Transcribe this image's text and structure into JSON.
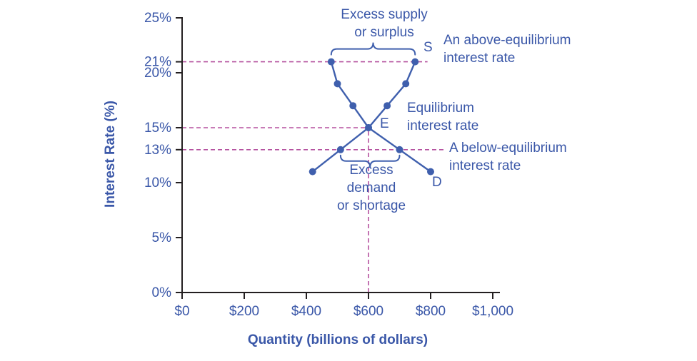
{
  "chart_data": {
    "type": "line",
    "title": "",
    "xlabel": "Quantity (billions of dollars)",
    "ylabel": "Interest Rate (%)",
    "xlim": [
      0,
      1000
    ],
    "ylim": [
      0,
      25
    ],
    "grid": false,
    "legend": "none",
    "x_ticks": [
      {
        "value": 0,
        "label": "$0"
      },
      {
        "value": 200,
        "label": "$200"
      },
      {
        "value": 400,
        "label": "$400"
      },
      {
        "value": 600,
        "label": "$600"
      },
      {
        "value": 800,
        "label": "$800"
      },
      {
        "value": 1000,
        "label": "$1,000"
      }
    ],
    "y_ticks": [
      {
        "value": 0,
        "label": "0%"
      },
      {
        "value": 5,
        "label": "5%"
      },
      {
        "value": 10,
        "label": "10%"
      },
      {
        "value": 13,
        "label": "13%"
      },
      {
        "value": 15,
        "label": "15%"
      },
      {
        "value": 20,
        "label": "20%"
      },
      {
        "value": 21,
        "label": "21%"
      },
      {
        "value": 25,
        "label": "25%"
      }
    ],
    "series": [
      {
        "name": "Supply",
        "end_label": "S",
        "points": [
          [
            420,
            11
          ],
          [
            510,
            13
          ],
          [
            600,
            15
          ],
          [
            660,
            17
          ],
          [
            720,
            19
          ],
          [
            750,
            21
          ]
        ]
      },
      {
        "name": "Demand",
        "end_label": "D",
        "points": [
          [
            480,
            21
          ],
          [
            500,
            19
          ],
          [
            550,
            17
          ],
          [
            600,
            15
          ],
          [
            700,
            13
          ],
          [
            800,
            11
          ]
        ]
      }
    ],
    "equilibrium": {
      "x": 600,
      "y": 15,
      "label": "E"
    },
    "dashed_guides": [
      {
        "orient": "h",
        "at": 21,
        "from": 0,
        "to": 790
      },
      {
        "orient": "h",
        "at": 15,
        "from": 0,
        "to": 600
      },
      {
        "orient": "h",
        "at": 13,
        "from": 0,
        "to": 845
      },
      {
        "orient": "v",
        "at": 600,
        "from": 0,
        "to": 15
      }
    ],
    "braces": [
      {
        "x1": 480,
        "x2": 750,
        "at": 21,
        "direction": "up"
      },
      {
        "x1": 510,
        "x2": 700,
        "at": 13,
        "direction": "down"
      }
    ],
    "annotations": {
      "excess_supply": [
        "Excess supply",
        "or surplus"
      ],
      "above_equilibrium": [
        "An above-equilibrium",
        "interest rate"
      ],
      "equilibrium": [
        "Equilibrium",
        "interest rate"
      ],
      "below_equilibrium": [
        "A below-equilibrium",
        "interest rate"
      ],
      "excess_demand": [
        "Excess",
        "demand",
        "or shortage"
      ]
    }
  },
  "colors": {
    "text_blue": "#3a57a8",
    "curve_blue": "#3f5fad",
    "dashed_magenta": "#b5519f",
    "axis_black": "#231f20"
  }
}
